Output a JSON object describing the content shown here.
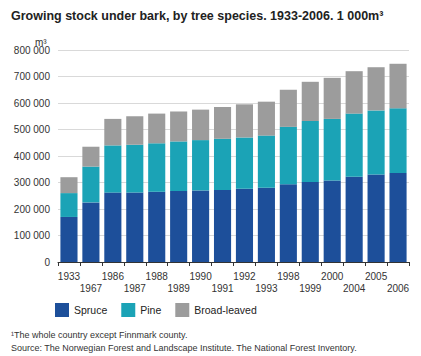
{
  "chart_data": {
    "type": "bar",
    "title": "Growing stock under bark, by tree species. 1933-2006. 1 000m³",
    "y_label": "m³",
    "footnote": "¹The whole country except Finnmark county.",
    "source": "Source: The Norwegian Forest and Landscape Institute. The National Forest Inventory.",
    "categories": [
      "1933",
      "1967",
      "1986",
      "1987",
      "1988",
      "1989",
      "1990",
      "1991",
      "1992",
      "1993",
      "1998",
      "1999",
      "2000",
      "2004",
      "2005",
      "2006"
    ],
    "series": [
      {
        "name": "Spruce",
        "color": "#1d4f9a",
        "values": [
          170000,
          225000,
          262000,
          262000,
          265000,
          268000,
          270000,
          272000,
          276000,
          280000,
          293000,
          302000,
          308000,
          322000,
          330000,
          336000
        ]
      },
      {
        "name": "Pine",
        "color": "#1ba3b6",
        "values": [
          90000,
          135000,
          178000,
          180000,
          183000,
          187000,
          190000,
          193000,
          194000,
          197000,
          217000,
          230000,
          232000,
          238000,
          242000,
          244000
        ]
      },
      {
        "name": "Broad-leaved",
        "color": "#9c9c9c",
        "values": [
          60000,
          75000,
          100000,
          108000,
          112000,
          113000,
          115000,
          120000,
          125000,
          128000,
          140000,
          148000,
          155000,
          160000,
          163000,
          168000
        ]
      }
    ],
    "stacked": true,
    "ylim": [
      0,
      800000
    ],
    "yticks": [
      0,
      {
        "value": 100000,
        "label": "100 000"
      },
      {
        "value": 200000,
        "label": "200 000"
      },
      {
        "value": 300000,
        "label": "300 000"
      },
      {
        "value": 400000,
        "label": "400 000"
      },
      {
        "value": 500000,
        "label": "500 000"
      },
      {
        "value": 600000,
        "label": "600 000"
      },
      {
        "value": 700000,
        "label": "700 000"
      },
      {
        "value": 800000,
        "label": "800 000"
      }
    ],
    "grid": true,
    "legend": "bottom"
  }
}
